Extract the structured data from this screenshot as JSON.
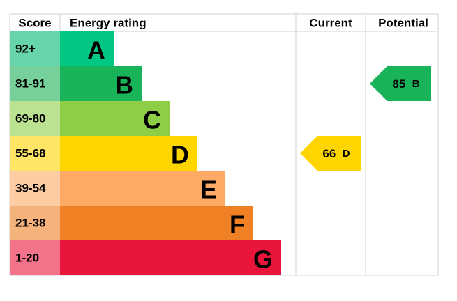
{
  "header": {
    "score": "Score",
    "energy_rating": "Energy rating",
    "current": "Current",
    "potential": "Potential"
  },
  "bands": [
    {
      "score": "92+",
      "letter": "A",
      "color": "#00c781",
      "score_color": "#66d5ab"
    },
    {
      "score": "81-91",
      "letter": "B",
      "color": "#19b459",
      "score_color": "#75d09a"
    },
    {
      "score": "69-80",
      "letter": "C",
      "color": "#8dce46",
      "score_color": "#bbe290"
    },
    {
      "score": "55-68",
      "letter": "D",
      "color": "#ffd500",
      "score_color": "#ffe566"
    },
    {
      "score": "39-54",
      "letter": "E",
      "color": "#fcaa65",
      "score_color": "#fdcca3"
    },
    {
      "score": "21-38",
      "letter": "F",
      "color": "#ef8023",
      "score_color": "#f5b37b"
    },
    {
      "score": "1-20",
      "letter": "G",
      "color": "#e9153b",
      "score_color": "#f27389"
    }
  ],
  "current": {
    "value": 66,
    "letter": "D"
  },
  "potential": {
    "value": 85,
    "letter": "B"
  }
}
